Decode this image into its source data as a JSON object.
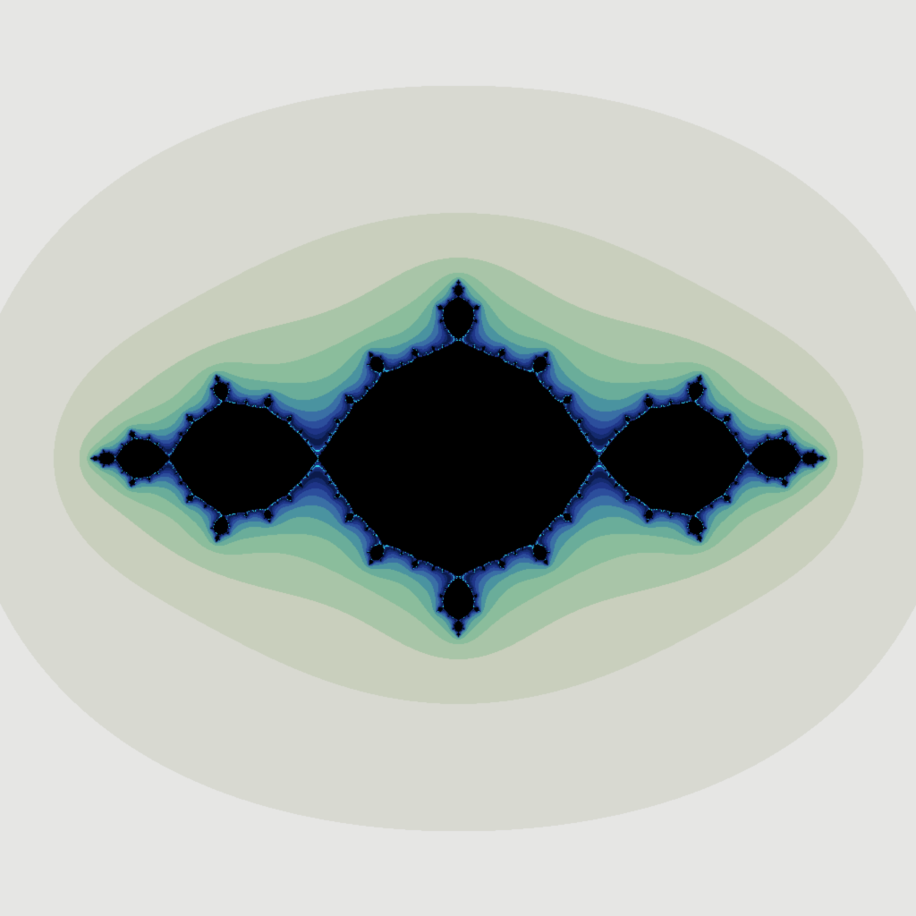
{
  "image": {
    "subject": "julia-set-fractal",
    "background_color": "#ffffff",
    "interior_color": "#000000",
    "escape_palette": [
      "#e6e6e4",
      "#d8d9d1",
      "#c9cfbd",
      "#a9c5a8",
      "#8bbd9c",
      "#6aad9a",
      "#4a93a0",
      "#3a6fa5",
      "#2c4e9c",
      "#1f3588",
      "#142a6e",
      "#0b1a4a",
      "#2fd6f0"
    ]
  }
}
